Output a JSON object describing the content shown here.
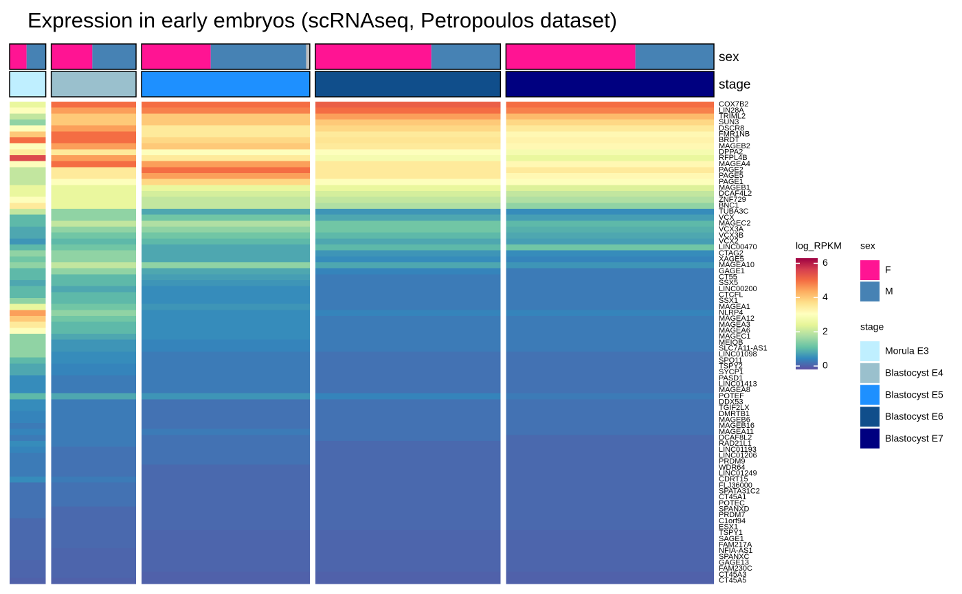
{
  "chart_data": {
    "type": "heatmap",
    "title": "Expression in early embryos (scRNAseq, Petropoulos dataset)",
    "sex": {
      "name": "sex",
      "levels": [
        {
          "label": "F",
          "color": "#FF1493"
        },
        {
          "label": "M",
          "color": "#4682B4"
        }
      ],
      "na_color": "#BEBEBE"
    },
    "stage": {
      "name": "stage"
    },
    "groups": [
      {
        "name": "Morula E3",
        "color": "#BFEFFF",
        "F": 38,
        "M": 43
      },
      {
        "name": "Blastocyst E4",
        "color": "#9AC0CD",
        "F": 92,
        "M": 98
      },
      {
        "name": "Blastocyst E5",
        "color": "#1E90FF",
        "F": 155,
        "M": 214,
        "NA": 8
      },
      {
        "name": "Blastocyst E6",
        "color": "#104E8B",
        "F": 260,
        "M": 155
      },
      {
        "name": "Blastocyst E7",
        "color": "#000080",
        "F": 290,
        "M": 176
      }
    ],
    "genes": [
      "COX7B2",
      "LIN28A",
      "TRIML2",
      "SUN3",
      "DSCR8",
      "FMR1NB",
      "BRDT",
      "MAGEB2",
      "DPPA2",
      "RFPL4B",
      "MAGEA4",
      "PAGE2",
      "PAGE5",
      "PAGE1",
      "MAGEB1",
      "DCAF4L2",
      "ZNF729",
      "BNC1",
      "TUBA3C",
      "VCX",
      "MAGEC2",
      "VCX3A",
      "VCX3B",
      "VCX2",
      "LINC00470",
      "CTAG2",
      "XAGE5",
      "MAGEA10",
      "GAGE1",
      "CT55",
      "SSX5",
      "LINC00200",
      "CTCFL",
      "SSX1",
      "MAGEA1",
      "NLRP4",
      "MAGEA12",
      "MAGEA3",
      "MAGEA6",
      "MAGEC1",
      "MEIOB",
      "SLC7A11-AS1",
      "LINC01098",
      "SPO11",
      "TSPY2",
      "SYCP1",
      "PASD1",
      "LINC01413",
      "MAGEA8",
      "POTEF",
      "DDX53",
      "TGIF2LX",
      "DMRTB1",
      "MAGEB6",
      "MAGEB16",
      "MAGEA11",
      "DCAF8L2",
      "RAD21L1",
      "LINC01193",
      "LINC01206",
      "PRDM9",
      "WDR64",
      "LINC01249",
      "CDRT15",
      "FLJ36000",
      "SPATA31C2",
      "CT45A1",
      "POTEC",
      "SPANXD",
      "PRDM7",
      "C1orf94",
      "ESX1",
      "TSPY1",
      "SAGE1",
      "FAM217A",
      "NFIA-AS1",
      "SPANXC",
      "GAGE13",
      "FAM230C",
      "CT45A3",
      "CT45A5"
    ],
    "values": [
      [
        2.5,
        5,
        5,
        5.2,
        5
      ],
      [
        3,
        4.5,
        4.8,
        5,
        4.8
      ],
      [
        2,
        4,
        4,
        4.5,
        4.2
      ],
      [
        1.5,
        4,
        4,
        4,
        3.8
      ],
      [
        3,
        4.5,
        3.5,
        3.8,
        3.5
      ],
      [
        4,
        5,
        3.5,
        3.5,
        3.2
      ],
      [
        5,
        5,
        3.8,
        3.6,
        3.3
      ],
      [
        3,
        4.5,
        4,
        3.5,
        3.2
      ],
      [
        3.5,
        3.5,
        3,
        3,
        2.8
      ],
      [
        5.5,
        4.5,
        3.5,
        2.8,
        2.5
      ],
      [
        3,
        5,
        4.5,
        3.5,
        3.2
      ],
      [
        2,
        3.5,
        5,
        3.5,
        3.5
      ],
      [
        2,
        3.5,
        4.5,
        3.5,
        3.2
      ],
      [
        2,
        3,
        3.8,
        3,
        3
      ],
      [
        2.5,
        2.5,
        2.5,
        2.5,
        2.3
      ],
      [
        2.5,
        2.5,
        2.2,
        2.2,
        2
      ],
      [
        3,
        2.5,
        2,
        2,
        1.8
      ],
      [
        3.5,
        2.5,
        2,
        1.8,
        1.5
      ],
      [
        2,
        1.5,
        0.8,
        0.6,
        0.5
      ],
      [
        1,
        1.5,
        1.2,
        0.8,
        0.7
      ],
      [
        1,
        2,
        1.8,
        1.2,
        1
      ],
      [
        0.8,
        1.5,
        1.5,
        1.2,
        0.9
      ],
      [
        0.8,
        1.2,
        1.2,
        1,
        0.8
      ],
      [
        0.6,
        1,
        1,
        0.8,
        0.7
      ],
      [
        1,
        1.2,
        0.8,
        1,
        1.2
      ],
      [
        1.5,
        1.5,
        0.8,
        0.6,
        0.5
      ],
      [
        1.2,
        1.5,
        0.8,
        0.5,
        0.4
      ],
      [
        1.5,
        2,
        1.5,
        0.8,
        0.6
      ],
      [
        1,
        1.5,
        0.8,
        0.4,
        0.3
      ],
      [
        1,
        1,
        0.7,
        0.3,
        0.3
      ],
      [
        0.8,
        1,
        0.6,
        0.3,
        0.3
      ],
      [
        1,
        0.8,
        0.5,
        0.3,
        0.3
      ],
      [
        1,
        1,
        0.5,
        0.3,
        0.3
      ],
      [
        1.5,
        1,
        0.5,
        0.3,
        0.3
      ],
      [
        2.5,
        1.2,
        0.6,
        0.3,
        0.3
      ],
      [
        4.5,
        1.5,
        0.5,
        0.4,
        0.4
      ],
      [
        4,
        1.2,
        0.5,
        0.3,
        0.3
      ],
      [
        3.5,
        1,
        0.5,
        0.3,
        0.3
      ],
      [
        3,
        1,
        0.5,
        0.3,
        0.3
      ],
      [
        1.5,
        0.8,
        0.5,
        0.3,
        0.3
      ],
      [
        1.5,
        0.6,
        0.4,
        0.3,
        0.3
      ],
      [
        1.5,
        0.6,
        0.4,
        0.3,
        0.3
      ],
      [
        1.5,
        0.5,
        0.3,
        0.2,
        0.2
      ],
      [
        1,
        0.5,
        0.3,
        0.2,
        0.2
      ],
      [
        0.8,
        0.4,
        0.3,
        0.2,
        0.2
      ],
      [
        0.8,
        0.4,
        0.3,
        0.2,
        0.2
      ],
      [
        0.5,
        0.3,
        0.3,
        0.2,
        0.2
      ],
      [
        0.5,
        0.3,
        0.3,
        0.2,
        0.2
      ],
      [
        0.5,
        0.3,
        0.3,
        0.2,
        0.2
      ],
      [
        1,
        0.8,
        0.6,
        0.4,
        0.3
      ],
      [
        0.5,
        0.3,
        0.2,
        0.2,
        0.2
      ],
      [
        0.5,
        0.3,
        0.2,
        0.2,
        0.2
      ],
      [
        0.4,
        0.3,
        0.2,
        0.2,
        0.2
      ],
      [
        0.4,
        0.3,
        0.2,
        0.2,
        0.2
      ],
      [
        0.3,
        0.3,
        0.2,
        0.2,
        0.2
      ],
      [
        0.4,
        0.3,
        0.3,
        0.2,
        0.2
      ],
      [
        0.3,
        0.3,
        0.2,
        0.2,
        0.1
      ],
      [
        0.5,
        0.3,
        0.2,
        0.1,
        0.1
      ],
      [
        0.4,
        0.2,
        0.2,
        0.1,
        0.1
      ],
      [
        0.3,
        0.2,
        0.2,
        0.1,
        0.1
      ],
      [
        0.3,
        0.2,
        0.2,
        0.1,
        0.1
      ],
      [
        0.3,
        0.2,
        0.1,
        0.1,
        0.1
      ],
      [
        0.3,
        0.2,
        0.1,
        0.1,
        0.1
      ],
      [
        0.5,
        0.3,
        0.1,
        0.1,
        0.1
      ],
      [
        0.2,
        0.2,
        0.1,
        0.1,
        0.1
      ],
      [
        0.2,
        0.2,
        0.1,
        0.1,
        0.1
      ],
      [
        0.2,
        0.2,
        0.1,
        0.1,
        0.1
      ],
      [
        0.2,
        0.2,
        0.1,
        0.1,
        0.1
      ],
      [
        0.2,
        0.1,
        0.1,
        0.1,
        0.1
      ],
      [
        0.2,
        0.1,
        0.1,
        0.1,
        0.1
      ],
      [
        0.1,
        0.1,
        0.1,
        0.1,
        0.1
      ],
      [
        0.1,
        0.1,
        0.1,
        0.1,
        0.1
      ],
      [
        0.1,
        0.1,
        0.05,
        0.05,
        0.05
      ],
      [
        0.1,
        0.1,
        0.05,
        0.05,
        0.05
      ],
      [
        0.1,
        0.1,
        0.05,
        0.05,
        0.05
      ],
      [
        0.1,
        0.05,
        0.05,
        0.05,
        0.05
      ],
      [
        0.1,
        0.05,
        0.05,
        0.05,
        0.05
      ],
      [
        0.05,
        0.05,
        0.05,
        0.05,
        0.05
      ],
      [
        0.05,
        0.05,
        0.05,
        0.05,
        0.05
      ],
      [
        0.05,
        0.05,
        0,
        0,
        0
      ],
      [
        0,
        0,
        0,
        0,
        0
      ]
    ],
    "colorbar": {
      "title": "log_RPKM",
      "lim": [
        -0.2,
        6.3
      ],
      "ticks": [
        0,
        2,
        4,
        6
      ],
      "colors": [
        "#5E4FA2",
        "#3288BD",
        "#66C2A5",
        "#ABDDA4",
        "#E6F598",
        "#FFFFBF",
        "#FEE08B",
        "#FDAE61",
        "#F46D43",
        "#D53E4F",
        "#9E0142"
      ]
    }
  }
}
